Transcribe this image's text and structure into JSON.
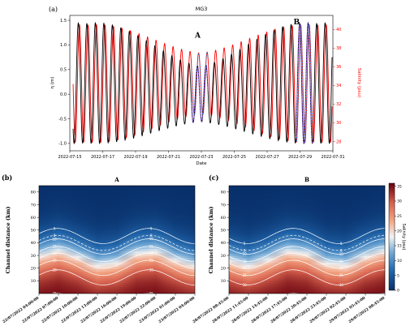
{
  "colors": {
    "eta_line": "#000000",
    "salinity_line": "#ff0000",
    "highlight_dashed": "#7b3fe4",
    "highlight_dashed_2": "#1c6fd0",
    "axis_right": "#ff0000",
    "colormap_low": "#08306b",
    "colormap_mid": "#f2f2f2",
    "colormap_high": "#67000d"
  },
  "chart_data": [
    {
      "type": "line",
      "panel_label": "(a)",
      "title": "MG3",
      "xlabel": "Date",
      "ylabel": "η (m)",
      "ylabel_right": "Salinity (psu)",
      "xlim": [
        "2022-07-15",
        "2022-07-31"
      ],
      "ylim": [
        -1.15,
        1.6
      ],
      "ylim_right": [
        27,
        41.5
      ],
      "x_ticks": [
        "2022-07-15",
        "2022-07-17",
        "2022-07-19",
        "2022-07-21",
        "2022-07-23",
        "2022-07-25",
        "2022-07-27",
        "2022-07-29",
        "2022-07-31"
      ],
      "y_ticks": [
        "1.5",
        "1.0",
        "0.5",
        "0.0",
        "-0.5",
        "-1.0"
      ],
      "y_ticks_right": [
        "40",
        "38",
        "36",
        "34",
        "32",
        "30",
        "28"
      ],
      "annotations": [
        {
          "text": "A",
          "x": "2022-07-23",
          "y": 1.15
        },
        {
          "text": "B",
          "x": "2022-07-29",
          "y": 1.42
        }
      ],
      "series": [
        {
          "name": "η",
          "axis": "left",
          "semidiurnal_period_days": 0.5175,
          "range_max": 1.45,
          "range_min": -1.0,
          "range_neap": 0.55
        },
        {
          "name": "Salinity",
          "axis": "right",
          "mean": 34.2,
          "amplitude_max": 6.3,
          "amplitude_min": 3.2
        }
      ],
      "grid": false
    },
    {
      "type": "heatmap",
      "panel_label": "(b)",
      "title": "A",
      "ylabel": "Channel distance (km)",
      "ylim": [
        0,
        85
      ],
      "y_ticks": [
        "80",
        "70",
        "60",
        "50",
        "40",
        "30",
        "20",
        "10"
      ],
      "x_tick_labels": [
        "22/07/2022 04:00:00",
        "22/07/2022 07:00:00",
        "22/07/2022 10:00:00",
        "22/07/2022 13:00:00",
        "22/07/2022 16:00:00",
        "22/07/2022 19:00:00",
        "22/07/2022 22:00:00",
        "23/07/2022 01:00:00",
        "23/07/2022 04:00:00"
      ],
      "contours": [
        {
          "label": "5",
          "level": 5
        },
        {
          "label": "8",
          "level": 8,
          "dashed": true
        },
        {
          "label": "10",
          "level": 10
        },
        {
          "label": "15",
          "level": 15
        },
        {
          "label": "20",
          "level": 20
        },
        {
          "label": "25",
          "level": 25
        },
        {
          "label": "30",
          "level": 30
        },
        {
          "label": "35",
          "level": 35
        }
      ]
    },
    {
      "type": "heatmap",
      "panel_label": "(c)",
      "title": "B",
      "ylabel": "Channel distance (km)",
      "ylim": [
        0,
        85
      ],
      "y_ticks": [
        "80",
        "70",
        "60",
        "50",
        "40",
        "30",
        "20",
        "10"
      ],
      "x_tick_labels": [
        "28/07/2022 08:45:00",
        "28/07/2022 11:45:00",
        "28/07/2022 14:45:00",
        "28/07/2022 17:45:00",
        "28/07/2022 20:45:00",
        "28/07/2022 23:45:00",
        "29/07/2022 02:45:00",
        "29/07/2022 05:45:00",
        "29/07/2022 08:45:00"
      ],
      "contours": [
        {
          "label": "5",
          "level": 5
        },
        {
          "label": "8",
          "level": 8,
          "dashed": true
        },
        {
          "label": "10",
          "level": 10
        },
        {
          "label": "15",
          "level": 15
        },
        {
          "label": "20",
          "level": 20
        },
        {
          "label": "25",
          "level": 25
        },
        {
          "label": "30",
          "level": 30
        },
        {
          "label": "35",
          "level": 35
        }
      ]
    }
  ],
  "colorbar": {
    "label": "Salinity (psu)",
    "ticks": [
      "35",
      "30",
      "25",
      "20",
      "15",
      "10",
      "5",
      "0"
    ],
    "range": [
      0,
      36
    ]
  }
}
